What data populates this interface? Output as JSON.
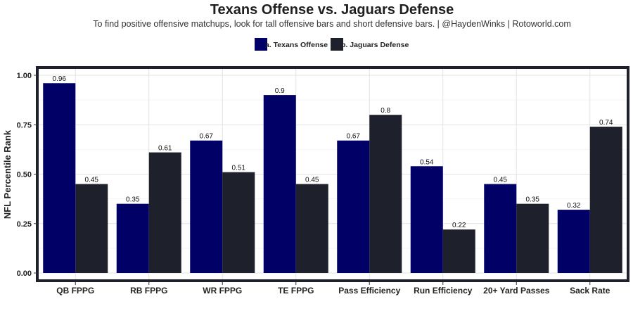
{
  "chart_data": {
    "type": "bar",
    "title": "Texans Offense vs. Jaguars Defense",
    "subtitle": "To find positive offensive matchups, look for tall offensive bars and short defensive bars. | @HaydenWinks | Rotoworld.com",
    "ylabel": "NFL Percentile Rank",
    "xlabel": "",
    "ylim": [
      0,
      1.0
    ],
    "yticks": [
      "0.00",
      "0.25",
      "0.50",
      "0.75",
      "1.00"
    ],
    "ytick_values": [
      0,
      0.25,
      0.5,
      0.75,
      1.0
    ],
    "grid": true,
    "legend_position": "top",
    "categories": [
      "QB FPPG",
      "RB FPPG",
      "WR FPPG",
      "TE FPPG",
      "Pass Efficiency",
      "Run Efficiency",
      "20+ Yard Passes",
      "Sack Rate"
    ],
    "series": [
      {
        "name": "a. Texans Offense",
        "color": "#000066",
        "values": [
          0.96,
          0.35,
          0.67,
          0.9,
          0.67,
          0.54,
          0.45,
          0.32
        ],
        "labels": [
          "0.96",
          "0.35",
          "0.67",
          "0.9",
          "0.67",
          "0.54",
          "0.45",
          "0.32"
        ]
      },
      {
        "name": "b. Jaguars Defense",
        "color": "#1e212b",
        "values": [
          0.45,
          0.61,
          0.51,
          0.45,
          0.8,
          0.22,
          0.35,
          0.74
        ],
        "labels": [
          "0.45",
          "0.61",
          "0.51",
          "0.45",
          "0.8",
          "0.22",
          "0.35",
          "0.74"
        ]
      }
    ]
  }
}
